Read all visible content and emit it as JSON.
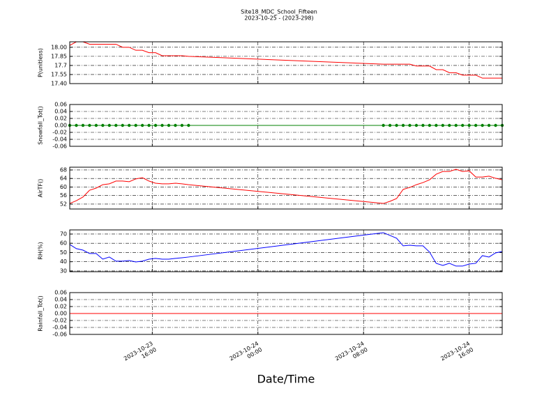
{
  "title": "Site18_MDC_School_Fifteen",
  "subtitle": "2023-10-25 - (2023-298)",
  "xlabel": "Date/Time",
  "xlim": [
    "2023-10-23 09:45",
    "2023-10-24 18:30"
  ],
  "xticks": [
    "2023-10-23 16:00",
    "2023-10-24 00:00",
    "2023-10-24 08:00",
    "2023-10-24 16:00"
  ],
  "x": [
    "2023-10-23 09:45",
    "2023-10-23 10:15",
    "2023-10-23 10:45",
    "2023-10-23 11:15",
    "2023-10-23 11:45",
    "2023-10-23 12:15",
    "2023-10-23 12:45",
    "2023-10-23 13:15",
    "2023-10-23 13:45",
    "2023-10-23 14:15",
    "2023-10-23 14:45",
    "2023-10-23 15:15",
    "2023-10-23 15:45",
    "2023-10-23 16:15",
    "2023-10-23 16:45",
    "2023-10-23 17:15",
    "2023-10-23 17:45",
    "2023-10-23 18:15",
    "2023-10-23 18:45",
    "2023-10-24 09:30",
    "2023-10-24 10:00",
    "2023-10-24 10:30",
    "2023-10-24 11:00",
    "2023-10-24 11:30",
    "2023-10-24 12:00",
    "2023-10-24 12:30",
    "2023-10-24 13:00",
    "2023-10-24 13:30",
    "2023-10-24 14:00",
    "2023-10-24 14:30",
    "2023-10-24 15:00",
    "2023-10-24 15:30",
    "2023-10-24 16:00",
    "2023-10-24 16:30",
    "2023-10-24 17:00",
    "2023-10-24 17:30",
    "2023-10-24 18:00",
    "2023-10-24 18:30"
  ],
  "chart_data": [
    {
      "type": "line",
      "ylabel": "P(unitless)",
      "color": "#ff0000",
      "marker": false,
      "grid": true,
      "ylim": [
        17.4,
        18.09
      ],
      "yticks": [
        {
          "value": 17.4,
          "label": "17.40"
        },
        17.55,
        17.7,
        17.85,
        {
          "value": 18,
          "label": "18.00"
        }
      ],
      "values": [
        18.03,
        18.09,
        18.09,
        18.05,
        18.05,
        18.05,
        18.05,
        18.05,
        18.0,
        18.0,
        17.95,
        17.95,
        17.91,
        17.91,
        17.86,
        17.86,
        17.86,
        17.86,
        17.85,
        17.72,
        17.72,
        17.72,
        17.72,
        17.72,
        17.69,
        17.69,
        17.69,
        17.63,
        17.63,
        17.58,
        17.58,
        17.54,
        17.54,
        17.54,
        17.49,
        17.49,
        17.49,
        17.49
      ]
    },
    {
      "type": "line",
      "ylabel": "Snowfall_Tot()",
      "color": "#008000",
      "marker": true,
      "grid": true,
      "ylim": [
        -0.06,
        0.06
      ],
      "yticks": [
        -0.06,
        -0.04,
        -0.02,
        {
          "value": 0,
          "label": "0.00"
        },
        0.02,
        0.04,
        0.06
      ],
      "values": [
        0,
        0,
        0,
        0,
        0,
        0,
        0,
        0,
        0,
        0,
        0,
        0,
        0,
        0,
        0,
        0,
        0,
        0,
        0,
        0,
        0,
        0,
        0,
        0,
        0,
        0,
        0,
        0,
        0,
        0,
        0,
        0,
        0,
        0,
        0,
        0,
        0,
        0
      ]
    },
    {
      "type": "line",
      "ylabel": "AirTF()",
      "color": "#ff0000",
      "marker": false,
      "grid": true,
      "ylim": [
        49.7,
        69.3
      ],
      "yticks": [
        52,
        56,
        60,
        64,
        68
      ],
      "values": [
        52.3,
        53.6,
        55.3,
        58.5,
        59.5,
        61.1,
        61.5,
        62.8,
        62.8,
        62.5,
        63.8,
        64.4,
        62.8,
        61.8,
        61.5,
        61.5,
        61.8,
        61.5,
        61.1,
        52.3,
        53.3,
        54.6,
        58.9,
        59.8,
        61.1,
        62.1,
        63.4,
        66.0,
        67.3,
        67.3,
        68.3,
        67.3,
        67.6,
        64.7,
        64.7,
        65.1,
        64.1,
        63.4
      ]
    },
    {
      "type": "line",
      "ylabel": "RH(%)",
      "color": "#0000ff",
      "marker": false,
      "grid": true,
      "ylim": [
        29.2,
        74.5
      ],
      "yticks": [
        30,
        40,
        50,
        60,
        70
      ],
      "values": [
        58.7,
        54.2,
        52.6,
        48.9,
        48.9,
        42.8,
        45.1,
        40.6,
        40.6,
        41.3,
        39.8,
        40.6,
        42.8,
        43.6,
        42.8,
        42.8,
        43.6,
        44.3,
        45.1,
        71.5,
        68.5,
        65.5,
        57.2,
        57.9,
        57.2,
        57.2,
        50.4,
        38.3,
        36.0,
        38.3,
        35.3,
        35.3,
        37.5,
        38.3,
        46.6,
        45.1,
        49.6,
        51.1
      ]
    },
    {
      "type": "line",
      "ylabel": "Rainfall_Tot()",
      "color": "#ff0000",
      "marker": false,
      "grid": true,
      "ylim": [
        -0.06,
        0.06
      ],
      "yticks": [
        -0.06,
        -0.04,
        -0.02,
        {
          "value": 0,
          "label": "0.00"
        },
        0.02,
        0.04,
        0.06
      ],
      "values": [
        0,
        0,
        0,
        0,
        0,
        0,
        0,
        0,
        0,
        0,
        0,
        0,
        0,
        0,
        0,
        0,
        0,
        0,
        0,
        0,
        0,
        0,
        0,
        0,
        0,
        0,
        0,
        0,
        0,
        0,
        0,
        0,
        0,
        0,
        0,
        0,
        0,
        0
      ]
    }
  ]
}
